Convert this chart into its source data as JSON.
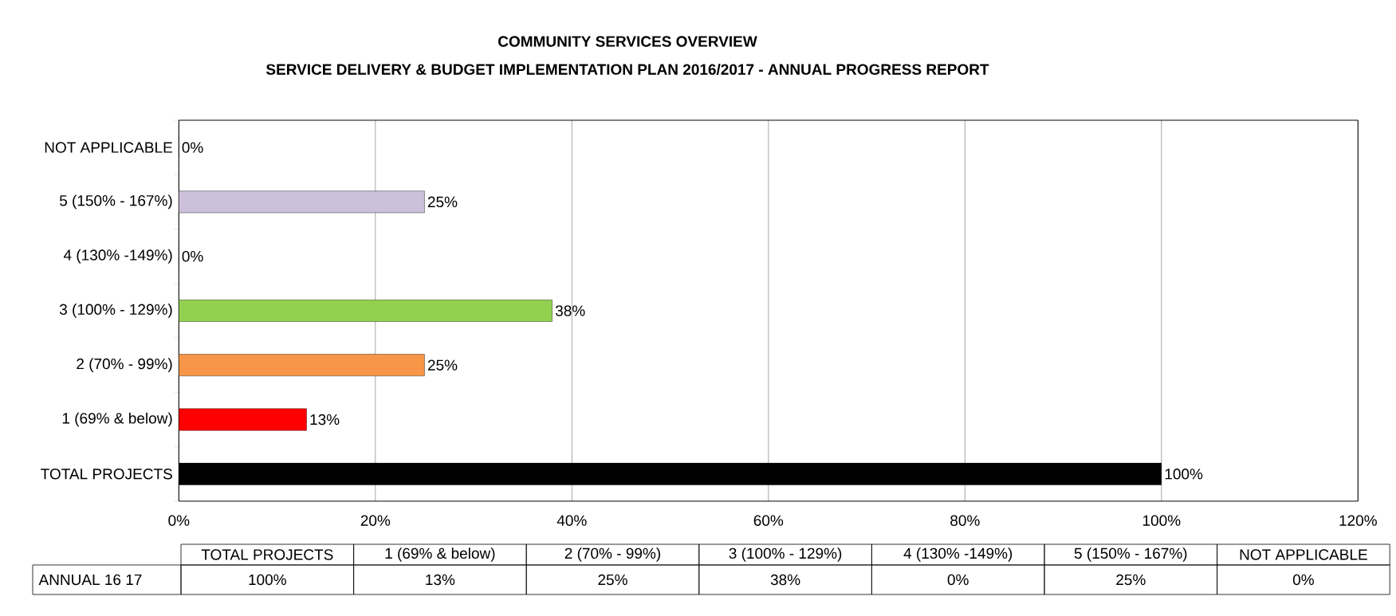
{
  "chart_data": {
    "type": "bar",
    "orientation": "horizontal",
    "title": "COMMUNITY SERVICES OVERVIEW",
    "subtitle": "SERVICE DELIVERY & BUDGET IMPLEMENTATION PLAN 2016/2017 -  ANNUAL PROGRESS REPORT",
    "categories": [
      "NOT APPLICABLE",
      "5 (150% - 167%)",
      "4 (130% -149%)",
      "3 (100% - 129%)",
      "2 (70% - 99%)",
      "1 (69% & below)",
      "TOTAL PROJECTS"
    ],
    "series": [
      {
        "name": "ANNUAL 16 17",
        "values": [
          0,
          25,
          0,
          38,
          25,
          13,
          100
        ],
        "colors": [
          "#ffffff",
          "#ccc0da",
          "#ffffff",
          "#92d050",
          "#f79646",
          "#ff0000",
          "#000000"
        ],
        "value_labels": [
          "0%",
          "25%",
          "0%",
          "38%",
          "25%",
          "13%",
          "100%"
        ]
      }
    ],
    "xlim": [
      0,
      120
    ],
    "xticks": [
      {
        "value": 0,
        "label": "0%"
      },
      {
        "value": 20,
        "label": "20%"
      },
      {
        "value": 40,
        "label": "40%"
      },
      {
        "value": 60,
        "label": "60%"
      },
      {
        "value": 80,
        "label": "80%"
      },
      {
        "value": 100,
        "label": "100%"
      },
      {
        "value": 120,
        "label": "120%"
      }
    ],
    "grid": "x"
  }
}
